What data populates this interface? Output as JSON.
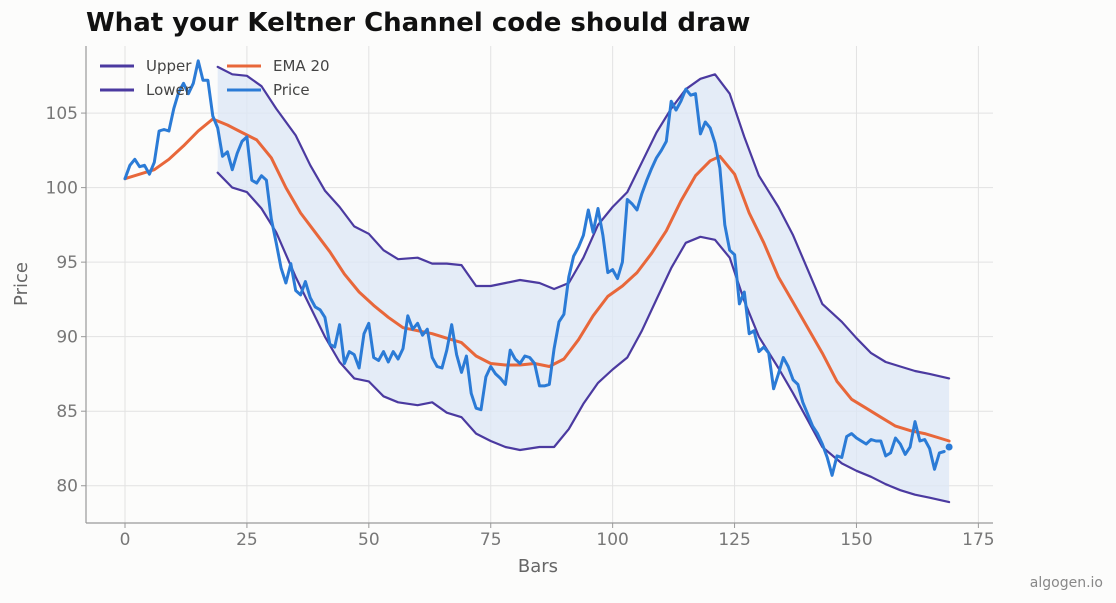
{
  "footer": {
    "text": "algogen.io"
  },
  "chart_data": {
    "type": "line",
    "title": "What your Keltner Channel code should draw",
    "xlabel": "Bars",
    "ylabel": "Price",
    "xlim": [
      -8,
      178
    ],
    "ylim": [
      77.5,
      109.5
    ],
    "xticks": [
      0,
      25,
      50,
      75,
      100,
      125,
      150,
      175
    ],
    "yticks": [
      80,
      85,
      90,
      95,
      100,
      105
    ],
    "grid": true,
    "legend_position": "top-left",
    "channel_fill_color": "#dce7f5",
    "colors": {
      "upper": "#4b3aa0",
      "lower": "#4b3aa0",
      "ema": "#e8673a",
      "price": "#2b7bd6"
    },
    "series": [
      {
        "name": "Upper",
        "x": [
          19,
          22,
          25,
          28,
          31,
          35,
          38,
          41,
          44,
          47,
          50,
          53,
          56,
          60,
          63,
          66,
          69,
          72,
          75,
          78,
          81,
          85,
          88,
          91,
          94,
          97,
          100,
          103,
          106,
          109,
          112,
          115,
          118,
          121,
          124,
          127,
          130,
          134,
          137,
          140,
          143,
          147,
          150,
          153,
          156,
          159,
          162,
          165,
          169
        ],
        "values": [
          108.1,
          107.6,
          107.5,
          106.8,
          105.3,
          103.5,
          101.5,
          99.8,
          98.7,
          97.4,
          96.9,
          95.8,
          95.2,
          95.3,
          94.9,
          94.9,
          94.8,
          93.4,
          93.4,
          93.6,
          93.8,
          93.6,
          93.2,
          93.6,
          95.3,
          97.5,
          98.7,
          99.7,
          101.7,
          103.7,
          105.3,
          106.6,
          107.3,
          107.6,
          106.3,
          103.4,
          100.8,
          98.7,
          96.8,
          94.5,
          92.2,
          91.0,
          89.9,
          88.9,
          88.3,
          88.0,
          87.7,
          87.5,
          87.2
        ]
      },
      {
        "name": "Lower",
        "x": [
          19,
          22,
          25,
          28,
          31,
          35,
          38,
          41,
          44,
          47,
          50,
          53,
          56,
          60,
          63,
          66,
          69,
          72,
          75,
          78,
          81,
          85,
          88,
          91,
          94,
          97,
          100,
          103,
          106,
          109,
          112,
          115,
          118,
          121,
          124,
          127,
          130,
          134,
          137,
          140,
          143,
          147,
          150,
          153,
          156,
          159,
          162,
          165,
          169
        ],
        "values": [
          101.0,
          100.0,
          99.7,
          98.6,
          97.0,
          94.0,
          92.0,
          90.0,
          88.3,
          87.2,
          87.0,
          86.0,
          85.6,
          85.4,
          85.6,
          84.9,
          84.6,
          83.5,
          83.0,
          82.6,
          82.4,
          82.6,
          82.6,
          83.8,
          85.5,
          86.9,
          87.8,
          88.6,
          90.4,
          92.5,
          94.6,
          96.3,
          96.7,
          96.5,
          95.3,
          92.4,
          90.0,
          87.9,
          86.2,
          84.4,
          82.6,
          81.5,
          81.0,
          80.6,
          80.1,
          79.7,
          79.4,
          79.2,
          78.9
        ]
      },
      {
        "name": "EMA 20",
        "x": [
          0,
          3,
          6,
          9,
          12,
          15,
          18,
          21,
          24,
          27,
          30,
          33,
          36,
          39,
          42,
          45,
          48,
          51,
          54,
          57,
          60,
          63,
          66,
          69,
          72,
          75,
          78,
          81,
          84,
          87,
          90,
          93,
          96,
          99,
          102,
          105,
          108,
          111,
          114,
          117,
          120,
          122,
          125,
          128,
          131,
          134,
          137,
          140,
          143,
          146,
          149,
          152,
          155,
          158,
          161,
          164,
          167,
          169
        ],
        "values": [
          100.6,
          100.9,
          101.2,
          101.9,
          102.8,
          103.8,
          104.6,
          104.2,
          103.7,
          103.2,
          102.0,
          100.0,
          98.3,
          97.0,
          95.7,
          94.2,
          93.0,
          92.1,
          91.3,
          90.6,
          90.4,
          90.2,
          89.9,
          89.6,
          88.7,
          88.2,
          88.1,
          88.1,
          88.2,
          88.0,
          88.5,
          89.8,
          91.4,
          92.7,
          93.4,
          94.3,
          95.6,
          97.1,
          99.1,
          100.8,
          101.8,
          102.1,
          100.9,
          98.3,
          96.3,
          94.0,
          92.3,
          90.6,
          88.9,
          87.0,
          85.8,
          85.2,
          84.6,
          84.0,
          83.7,
          83.5,
          83.2,
          83.0
        ]
      },
      {
        "name": "Price",
        "x": [
          0,
          1,
          2,
          3,
          4,
          5,
          6,
          7,
          8,
          9,
          10,
          11,
          12,
          13,
          14,
          15,
          16,
          17,
          18,
          19,
          20,
          21,
          22,
          23,
          24,
          25,
          26,
          27,
          28,
          29,
          30,
          31,
          32,
          33,
          34,
          35,
          36,
          37,
          38,
          39,
          40,
          41,
          42,
          43,
          44,
          45,
          46,
          47,
          48,
          49,
          50,
          51,
          52,
          53,
          54,
          55,
          56,
          57,
          58,
          59,
          60,
          61,
          62,
          63,
          64,
          65,
          66,
          67,
          68,
          69,
          70,
          71,
          72,
          73,
          74,
          75,
          76,
          77,
          78,
          79,
          80,
          81,
          82,
          83,
          84,
          85,
          86,
          87,
          88,
          89,
          90,
          91,
          92,
          93,
          94,
          95,
          96,
          97,
          98,
          99,
          100,
          101,
          102,
          103,
          104,
          105,
          106,
          107,
          108,
          109,
          110,
          111,
          112,
          113,
          114,
          115,
          116,
          117,
          118,
          119,
          120,
          121,
          122,
          123,
          124,
          125,
          126,
          127,
          128,
          129,
          130,
          131,
          132,
          133,
          134,
          135,
          136,
          137,
          138,
          139,
          140,
          141,
          142,
          143,
          144,
          145,
          146,
          147,
          148,
          149,
          150,
          151,
          152,
          153,
          154,
          155,
          156,
          157,
          158,
          159,
          160,
          161,
          162,
          163,
          164,
          165,
          166,
          167,
          168
        ],
        "values": [
          100.6,
          101.5,
          101.9,
          101.4,
          101.5,
          100.9,
          101.7,
          103.8,
          103.9,
          103.8,
          105.3,
          106.4,
          107.0,
          106.3,
          107.0,
          108.5,
          107.2,
          107.2,
          104.8,
          104.0,
          102.1,
          102.4,
          101.2,
          102.3,
          103.1,
          103.4,
          100.5,
          100.3,
          100.8,
          100.5,
          97.9,
          96.3,
          94.6,
          93.6,
          94.9,
          93.1,
          92.8,
          93.7,
          92.6,
          92.0,
          91.8,
          91.3,
          89.5,
          89.3,
          90.8,
          88.2,
          89.0,
          88.8,
          87.9,
          90.2,
          90.9,
          88.6,
          88.4,
          89.0,
          88.3,
          89.0,
          88.5,
          89.2,
          91.4,
          90.5,
          90.9,
          90.1,
          90.5,
          88.6,
          88.0,
          87.9,
          89.1,
          90.8,
          88.8,
          87.6,
          88.7,
          86.2,
          85.2,
          85.1,
          87.3,
          88.0,
          87.5,
          87.2,
          86.8,
          89.1,
          88.5,
          88.2,
          88.7,
          88.6,
          88.2,
          86.7,
          86.7,
          86.8,
          89.2,
          91.0,
          91.5,
          94.0,
          95.4,
          96.0,
          96.8,
          98.5,
          97.0,
          98.6,
          96.8,
          94.3,
          94.5,
          93.9,
          95.0,
          99.2,
          98.9,
          98.5,
          99.6,
          100.5,
          101.3,
          102.0,
          102.5,
          103.1,
          105.8,
          105.2,
          105.8,
          106.6,
          106.2,
          106.3,
          103.6,
          104.4,
          104.0,
          103.0,
          101.3,
          97.5,
          95.8,
          95.5,
          92.2,
          93.0,
          90.2,
          90.4,
          89.0,
          89.3,
          88.9,
          86.5,
          87.5,
          88.6,
          88.0,
          87.1,
          86.8,
          85.6,
          84.8,
          84.0,
          83.5,
          82.8,
          81.9,
          80.7,
          82.0,
          81.9,
          83.3,
          83.5,
          83.2,
          83.0,
          82.8,
          83.1,
          83.0,
          83.0,
          82.0,
          82.2,
          83.2,
          82.8,
          82.1,
          82.6,
          84.3,
          83.0,
          83.1,
          82.5,
          81.1,
          82.2,
          82.3
        ]
      }
    ],
    "last_price_point": {
      "x": 169,
      "y": 82.6
    }
  }
}
